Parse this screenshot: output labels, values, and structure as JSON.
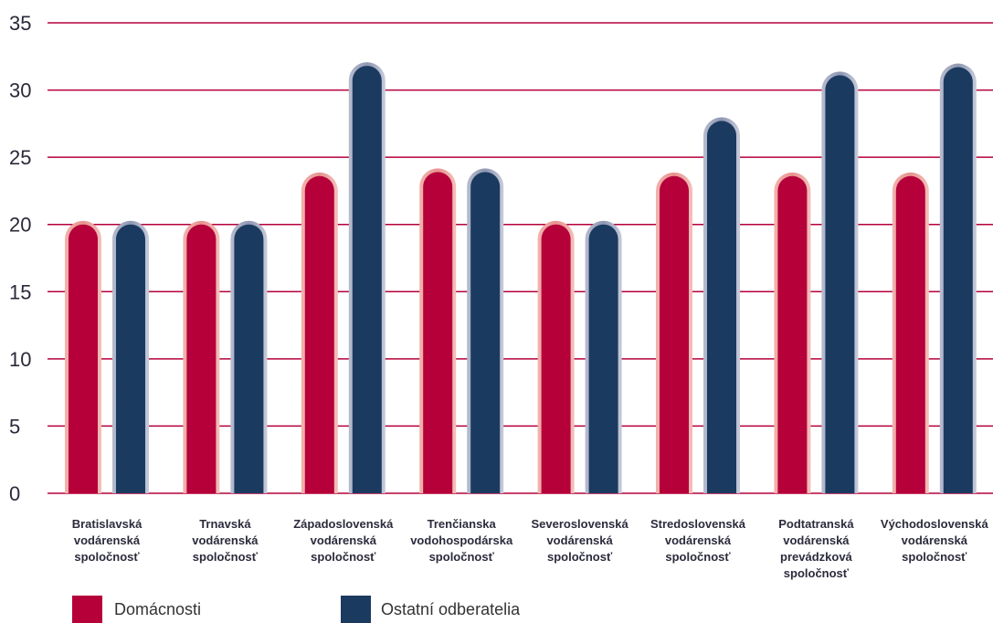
{
  "chart_data": {
    "type": "bar",
    "categories": [
      [
        "Bratislavská",
        "vodárenská",
        "spoločnosť"
      ],
      [
        "Trnavská",
        "vodárenská",
        "spoločnosť"
      ],
      [
        "Západoslovenská",
        "vodárenská",
        "spoločnosť"
      ],
      [
        "Trenčianska",
        "vodohospodárska",
        "spoločnosť"
      ],
      [
        "Severoslovenská",
        "vodárenská",
        "spoločnosť"
      ],
      [
        "Stredoslovenská",
        "vodárenská",
        "spoločnosť"
      ],
      [
        "Podtatranská",
        "vodárenská",
        "prevádzková",
        "spoločnosť"
      ],
      [
        "Východoslovenská",
        "vodárenská",
        "spoločnosť"
      ]
    ],
    "series": [
      {
        "name": "Domácnosti",
        "color": "#b5003a",
        "values": [
          20.0,
          20.0,
          23.6,
          23.9,
          20.0,
          23.6,
          23.6,
          23.6
        ]
      },
      {
        "name": "Ostatní odberatelia",
        "color": "#1b3a60",
        "values": [
          20.0,
          20.0,
          31.8,
          23.9,
          20.0,
          27.7,
          31.1,
          31.7
        ]
      }
    ],
    "ylim": [
      0,
      35
    ],
    "yticks": [
      0,
      5,
      10,
      15,
      20,
      25,
      30,
      35
    ],
    "grid": true,
    "gridline_color": "#b5003a",
    "legend_placement": "bottom-left"
  }
}
